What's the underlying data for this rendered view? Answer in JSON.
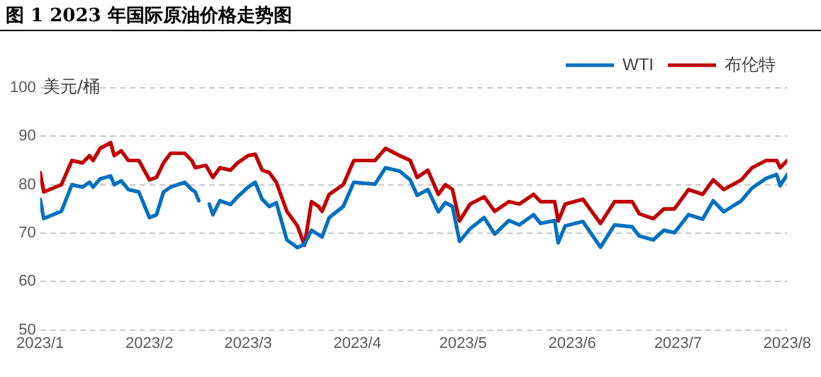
{
  "chart_data": {
    "type": "line",
    "title": "图 1 2023 年国际原油价格走势图",
    "ylabel": "美元/桶",
    "xlim": [
      "2023-01-01",
      "2023-08-01"
    ],
    "xticks": [
      {
        "value": "2023-01-01",
        "label": "2023/1"
      },
      {
        "value": "2023-02-01",
        "label": "2023/2"
      },
      {
        "value": "2023-03-01",
        "label": "2023/3"
      },
      {
        "value": "2023-04-01",
        "label": "2023/4"
      },
      {
        "value": "2023-05-01",
        "label": "2023/5"
      },
      {
        "value": "2023-06-01",
        "label": "2023/6"
      },
      {
        "value": "2023-07-01",
        "label": "2023/7"
      },
      {
        "value": "2023-08-01",
        "label": "2023/8"
      }
    ],
    "ylim": [
      50,
      100
    ],
    "yticks": [
      50,
      60,
      70,
      80,
      90,
      100
    ],
    "grid": "y",
    "legend": "top right",
    "marker": "none",
    "line_style": "solid",
    "series": [
      {
        "name": "WTI",
        "color": "#0070c0",
        "x": [
          "2023-01-01",
          "2023-01-02",
          "2023-01-07",
          "2023-01-10",
          "2023-01-13",
          "2023-01-15",
          "2023-01-16",
          "2023-01-18",
          "2023-01-21",
          "2023-01-22",
          "2023-01-24",
          "2023-01-26",
          "2023-01-29",
          "2023-02-01",
          "2023-02-03",
          "2023-02-05",
          "2023-02-07",
          "2023-02-11",
          "2023-02-13",
          "2023-02-14",
          "2023-02-15",
          "2023-02-17",
          "2023-02-18",
          "2023-02-19",
          "2023-02-21",
          "2023-02-24",
          "2023-02-26",
          "2023-03-01",
          "2023-03-03",
          "2023-03-05",
          "2023-03-07",
          "2023-03-09",
          "2023-03-12",
          "2023-03-15",
          "2023-03-17",
          "2023-03-19",
          "2023-03-22",
          "2023-03-24",
          "2023-03-28",
          "2023-03-31",
          "2023-04-06",
          "2023-04-09",
          "2023-04-13",
          "2023-04-16",
          "2023-04-18",
          "2023-04-21",
          "2023-04-24",
          "2023-04-26",
          "2023-04-28",
          "2023-04-30",
          "2023-05-03",
          "2023-05-07",
          "2023-05-10",
          "2023-05-14",
          "2023-05-17",
          "2023-05-21",
          "2023-05-23",
          "2023-05-27",
          "2023-05-28",
          "2023-05-30",
          "2023-06-04",
          "2023-06-09",
          "2023-06-13",
          "2023-06-18",
          "2023-06-20",
          "2023-06-24",
          "2023-06-27",
          "2023-06-30",
          "2023-07-04",
          "2023-07-08",
          "2023-07-11",
          "2023-07-14",
          "2023-07-19",
          "2023-07-22",
          "2023-07-26",
          "2023-07-29",
          "2023-07-30",
          "2023-08-01"
        ],
        "values": [
          77,
          73,
          74.5,
          80,
          79.5,
          80.5,
          79.5,
          81.2,
          81.8,
          80,
          80.8,
          79,
          78.5,
          73.2,
          73.8,
          78.5,
          79.5,
          80.5,
          79,
          78.5,
          76.7,
          null,
          76,
          73.8,
          76.7,
          75.9,
          77.5,
          79.5,
          80.5,
          77,
          75.5,
          76.3,
          68.6,
          67,
          67.7,
          70.6,
          69.2,
          73.2,
          75.5,
          80.5,
          80.1,
          83.5,
          82.8,
          81,
          77.8,
          79,
          74.4,
          76.3,
          75.5,
          68.3,
          70.9,
          73.2,
          69.8,
          72.6,
          71.7,
          73.8,
          72,
          72.6,
          68,
          71.5,
          72.4,
          67.1,
          71.7,
          71.3,
          69.4,
          68.6,
          70.6,
          70.1,
          73.8,
          72.9,
          76.7,
          74.4,
          76.7,
          79.3,
          81.3,
          82.1,
          79.8,
          82.1
        ]
      },
      {
        "name": "布伦特",
        "color": "#c00000",
        "x": [
          "2023-01-01",
          "2023-01-02",
          "2023-01-07",
          "2023-01-10",
          "2023-01-13",
          "2023-01-15",
          "2023-01-16",
          "2023-01-18",
          "2023-01-21",
          "2023-01-22",
          "2023-01-24",
          "2023-01-26",
          "2023-01-29",
          "2023-02-01",
          "2023-02-03",
          "2023-02-05",
          "2023-02-07",
          "2023-02-11",
          "2023-02-13",
          "2023-02-14",
          "2023-02-17",
          "2023-02-19",
          "2023-02-21",
          "2023-02-24",
          "2023-02-26",
          "2023-03-01",
          "2023-03-03",
          "2023-03-05",
          "2023-03-07",
          "2023-03-09",
          "2023-03-12",
          "2023-03-15",
          "2023-03-17",
          "2023-03-19",
          "2023-03-21",
          "2023-03-22",
          "2023-03-24",
          "2023-03-28",
          "2023-03-31",
          "2023-04-06",
          "2023-04-09",
          "2023-04-13",
          "2023-04-16",
          "2023-04-18",
          "2023-04-21",
          "2023-04-24",
          "2023-04-26",
          "2023-04-28",
          "2023-04-30",
          "2023-05-03",
          "2023-05-07",
          "2023-05-10",
          "2023-05-14",
          "2023-05-17",
          "2023-05-21",
          "2023-05-23",
          "2023-05-27",
          "2023-05-28",
          "2023-05-30",
          "2023-06-04",
          "2023-06-09",
          "2023-06-13",
          "2023-06-18",
          "2023-06-20",
          "2023-06-24",
          "2023-06-27",
          "2023-06-30",
          "2023-07-04",
          "2023-07-08",
          "2023-07-11",
          "2023-07-14",
          "2023-07-19",
          "2023-07-22",
          "2023-07-26",
          "2023-07-29",
          "2023-07-30",
          "2023-08-01"
        ],
        "values": [
          82.5,
          78.5,
          80,
          85,
          84.5,
          86,
          85,
          87.5,
          88.7,
          86,
          87,
          85,
          85,
          81,
          81.5,
          84.5,
          86.5,
          86.5,
          85,
          83.5,
          84,
          81.5,
          83.5,
          83,
          84.5,
          86,
          86.3,
          83,
          82.5,
          80.5,
          74.5,
          71.5,
          67.5,
          76.5,
          75.5,
          74.5,
          78,
          80,
          85,
          85,
          87.5,
          86,
          85,
          81.5,
          83,
          78,
          80,
          79,
          72.5,
          76,
          77.5,
          74.5,
          76.5,
          76,
          78,
          76.5,
          76.5,
          72.5,
          76,
          77,
          72,
          76.5,
          76.5,
          74,
          73,
          75,
          75,
          79,
          78,
          81,
          79,
          81,
          83.5,
          85,
          85,
          83.5,
          85
        ]
      }
    ]
  }
}
